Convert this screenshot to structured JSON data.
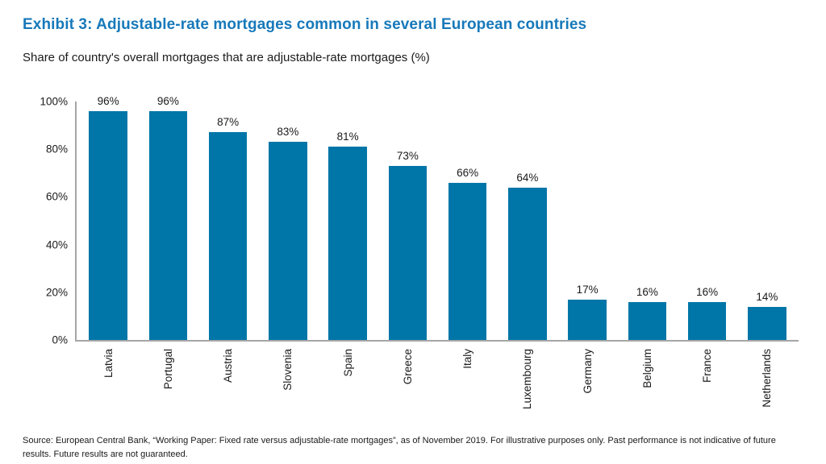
{
  "header": {
    "title": "Exhibit 3: Adjustable-rate mortgages common in several European countries",
    "subtitle": "Share of country's overall mortgages that are adjustable-rate mortgages (%)"
  },
  "chart_data": {
    "type": "bar",
    "categories": [
      "Latvia",
      "Portugal",
      "Austria",
      "Slovenia",
      "Spain",
      "Greece",
      "Italy",
      "Luxembourg",
      "Germany",
      "Belgium",
      "France",
      "Netherlands"
    ],
    "values": [
      96,
      96,
      87,
      83,
      81,
      73,
      66,
      64,
      17,
      16,
      16,
      14
    ],
    "value_labels": [
      "96%",
      "96%",
      "87%",
      "83%",
      "81%",
      "73%",
      "66%",
      "64%",
      "17%",
      "16%",
      "16%",
      "14%"
    ],
    "title": "Exhibit 3: Adjustable-rate mortgages common in several European countries",
    "xlabel": "",
    "ylabel": "Share of country's overall mortgages that are adjustable-rate mortgages (%)",
    "ylim": [
      0,
      100
    ],
    "yticks": [
      "100%",
      "80%",
      "60%",
      "40%",
      "20%",
      "0%"
    ],
    "grid": false,
    "legend": false,
    "x_label_rotation": 90
  },
  "footer": {
    "source": "Source: European Central Bank, “Working Paper: Fixed rate versus adjustable-rate mortgages”, as of November 2019. For illustrative purposes only. Past performance is not indicative of future results. Future results are not guaranteed."
  },
  "colors": {
    "title": "#1779BA",
    "bar": "#0076A8",
    "axis": "#A6A6A6",
    "text": "#1A1A1A"
  }
}
